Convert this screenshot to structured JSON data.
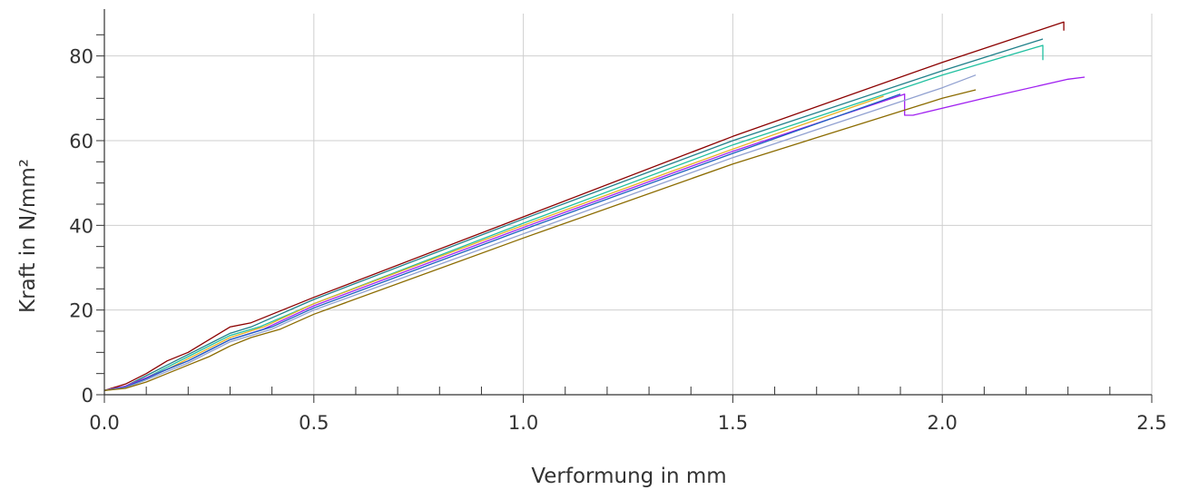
{
  "chart_data": {
    "type": "line",
    "xlabel": "Verformung in mm",
    "ylabel": "Kraft in N/mm²",
    "xlim": [
      0,
      2.5
    ],
    "ylim": [
      0,
      90
    ],
    "x_ticks": [
      "0.0",
      "0.5",
      "1.0",
      "1.5",
      "2.0",
      "2.5"
    ],
    "y_ticks": [
      "0",
      "20",
      "40",
      "60",
      "80"
    ],
    "grid": true,
    "series": [
      {
        "color": "#8b0000",
        "x": [
          0,
          0.05,
          0.1,
          0.15,
          0.2,
          0.25,
          0.3,
          0.35,
          0.5,
          1.0,
          1.5,
          2.0,
          2.29,
          2.29
        ],
        "y": [
          1,
          2.5,
          5,
          8,
          10,
          13,
          16,
          17,
          23,
          42,
          61,
          78.5,
          88,
          86
        ]
      },
      {
        "color": "#20808a",
        "x": [
          0,
          0.05,
          0.1,
          0.15,
          0.2,
          0.25,
          0.3,
          0.35,
          0.5,
          1.0,
          1.5,
          2.0,
          2.24
        ],
        "y": [
          1,
          2,
          4.5,
          7,
          9.5,
          12,
          14.5,
          16,
          22.5,
          41.5,
          60,
          76.5,
          84
        ]
      },
      {
        "color": "#20c0a0",
        "x": [
          0,
          0.05,
          0.1,
          0.15,
          0.2,
          0.25,
          0.3,
          0.37,
          0.5,
          1.0,
          1.5,
          2.0,
          2.24,
          2.24
        ],
        "y": [
          1,
          2,
          4,
          6.5,
          9,
          11.5,
          14,
          16,
          21.5,
          40.5,
          59,
          75.5,
          82.5,
          79
        ]
      },
      {
        "color": "#e8b020",
        "x": [
          0,
          0.05,
          0.1,
          0.15,
          0.2,
          0.25,
          0.3,
          0.38,
          0.5,
          1.0,
          1.5,
          1.86
        ],
        "y": [
          1,
          2,
          4,
          6,
          8.5,
          11,
          13.5,
          16,
          21.5,
          40,
          58,
          70.5
        ]
      },
      {
        "color": "#a020f0",
        "x": [
          0,
          0.05,
          0.1,
          0.15,
          0.2,
          0.25,
          0.3,
          0.38,
          0.5,
          1.0,
          1.5,
          1.91,
          1.91,
          1.93,
          2.1,
          2.3,
          2.34
        ],
        "y": [
          1,
          2,
          4,
          6,
          8,
          10.5,
          13,
          15.5,
          21,
          39.5,
          57.5,
          71,
          66,
          66,
          70,
          74.5,
          75
        ]
      },
      {
        "color": "#1b5fbf",
        "x": [
          0,
          0.05,
          0.1,
          0.15,
          0.2,
          0.25,
          0.3,
          0.4,
          0.5,
          1.0,
          1.5,
          1.9
        ],
        "y": [
          1,
          1.8,
          3.8,
          6,
          8,
          10.5,
          13,
          16,
          20.5,
          39,
          57,
          71
        ]
      },
      {
        "color": "#90a0d0",
        "x": [
          0,
          0.05,
          0.1,
          0.15,
          0.2,
          0.25,
          0.3,
          0.4,
          0.5,
          1.0,
          1.5,
          2.0,
          2.08
        ],
        "y": [
          1,
          1.6,
          3.5,
          5.5,
          7.5,
          10,
          12.5,
          15.5,
          20,
          38,
          56,
          72.5,
          75.5
        ]
      },
      {
        "color": "#8b6b00",
        "x": [
          0,
          0.05,
          0.1,
          0.15,
          0.2,
          0.25,
          0.3,
          0.35,
          0.42,
          0.5,
          1.0,
          1.5,
          2.0,
          2.08
        ],
        "y": [
          1,
          1.5,
          3,
          5,
          7,
          9,
          11.5,
          13.5,
          15.5,
          19,
          37,
          54.5,
          70,
          72
        ]
      }
    ]
  }
}
